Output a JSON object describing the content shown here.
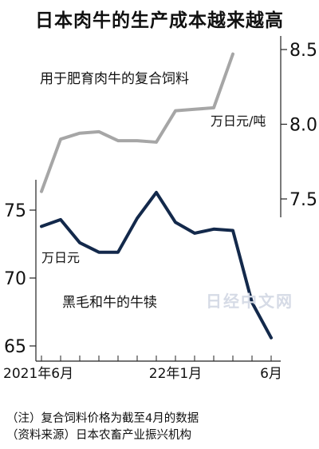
{
  "title": "日本肉牛的生产成本越来越高",
  "watermark": "日经中文网",
  "notes": [
    "（注）复合饲料价格为截至4月的数据",
    "（资料来源）日本农畜产业振兴机构"
  ],
  "chart_data": [
    {
      "type": "line",
      "title": "",
      "series": [
        {
          "name": "用于肥育肉牛的复合饲料",
          "color": "#a6a6a6"
        }
      ],
      "x": [
        "2021-06",
        "2021-07",
        "2021-08",
        "2021-09",
        "2021-10",
        "2021-11",
        "2021-12",
        "2022-01",
        "2022-02",
        "2022-03",
        "2022-04"
      ],
      "values": [
        7.55,
        7.9,
        7.94,
        7.95,
        7.89,
        7.89,
        7.88,
        8.09,
        8.1,
        8.11,
        8.47
      ],
      "ylabel": "万日元/吨",
      "y_axis_position": "right",
      "yticks": [
        7.5,
        8.0,
        8.5
      ],
      "ylim": [
        7.4,
        8.55
      ]
    },
    {
      "type": "line",
      "title": "",
      "series": [
        {
          "name": "黑毛和牛的牛犊",
          "color": "#13294b"
        }
      ],
      "x": [
        "2021-06",
        "2021-07",
        "2021-08",
        "2021-09",
        "2021-10",
        "2021-11",
        "2021-12",
        "2022-01",
        "2022-02",
        "2022-03",
        "2022-04",
        "2022-05",
        "2022-06"
      ],
      "values": [
        73.8,
        74.3,
        72.6,
        71.9,
        71.9,
        74.4,
        76.3,
        74.1,
        73.3,
        73.6,
        73.5,
        68.2,
        65.6
      ],
      "ylabel": "万日元",
      "y_axis_position": "left",
      "yticks": [
        65,
        70,
        75
      ],
      "ylim": [
        64.7,
        77
      ],
      "x_tick_labels": [
        {
          "x": "2021-06",
          "label": "2021年6月"
        },
        {
          "x": "2022-01",
          "label": "22年1月"
        },
        {
          "x": "2022-06",
          "label": "6月"
        }
      ]
    }
  ]
}
